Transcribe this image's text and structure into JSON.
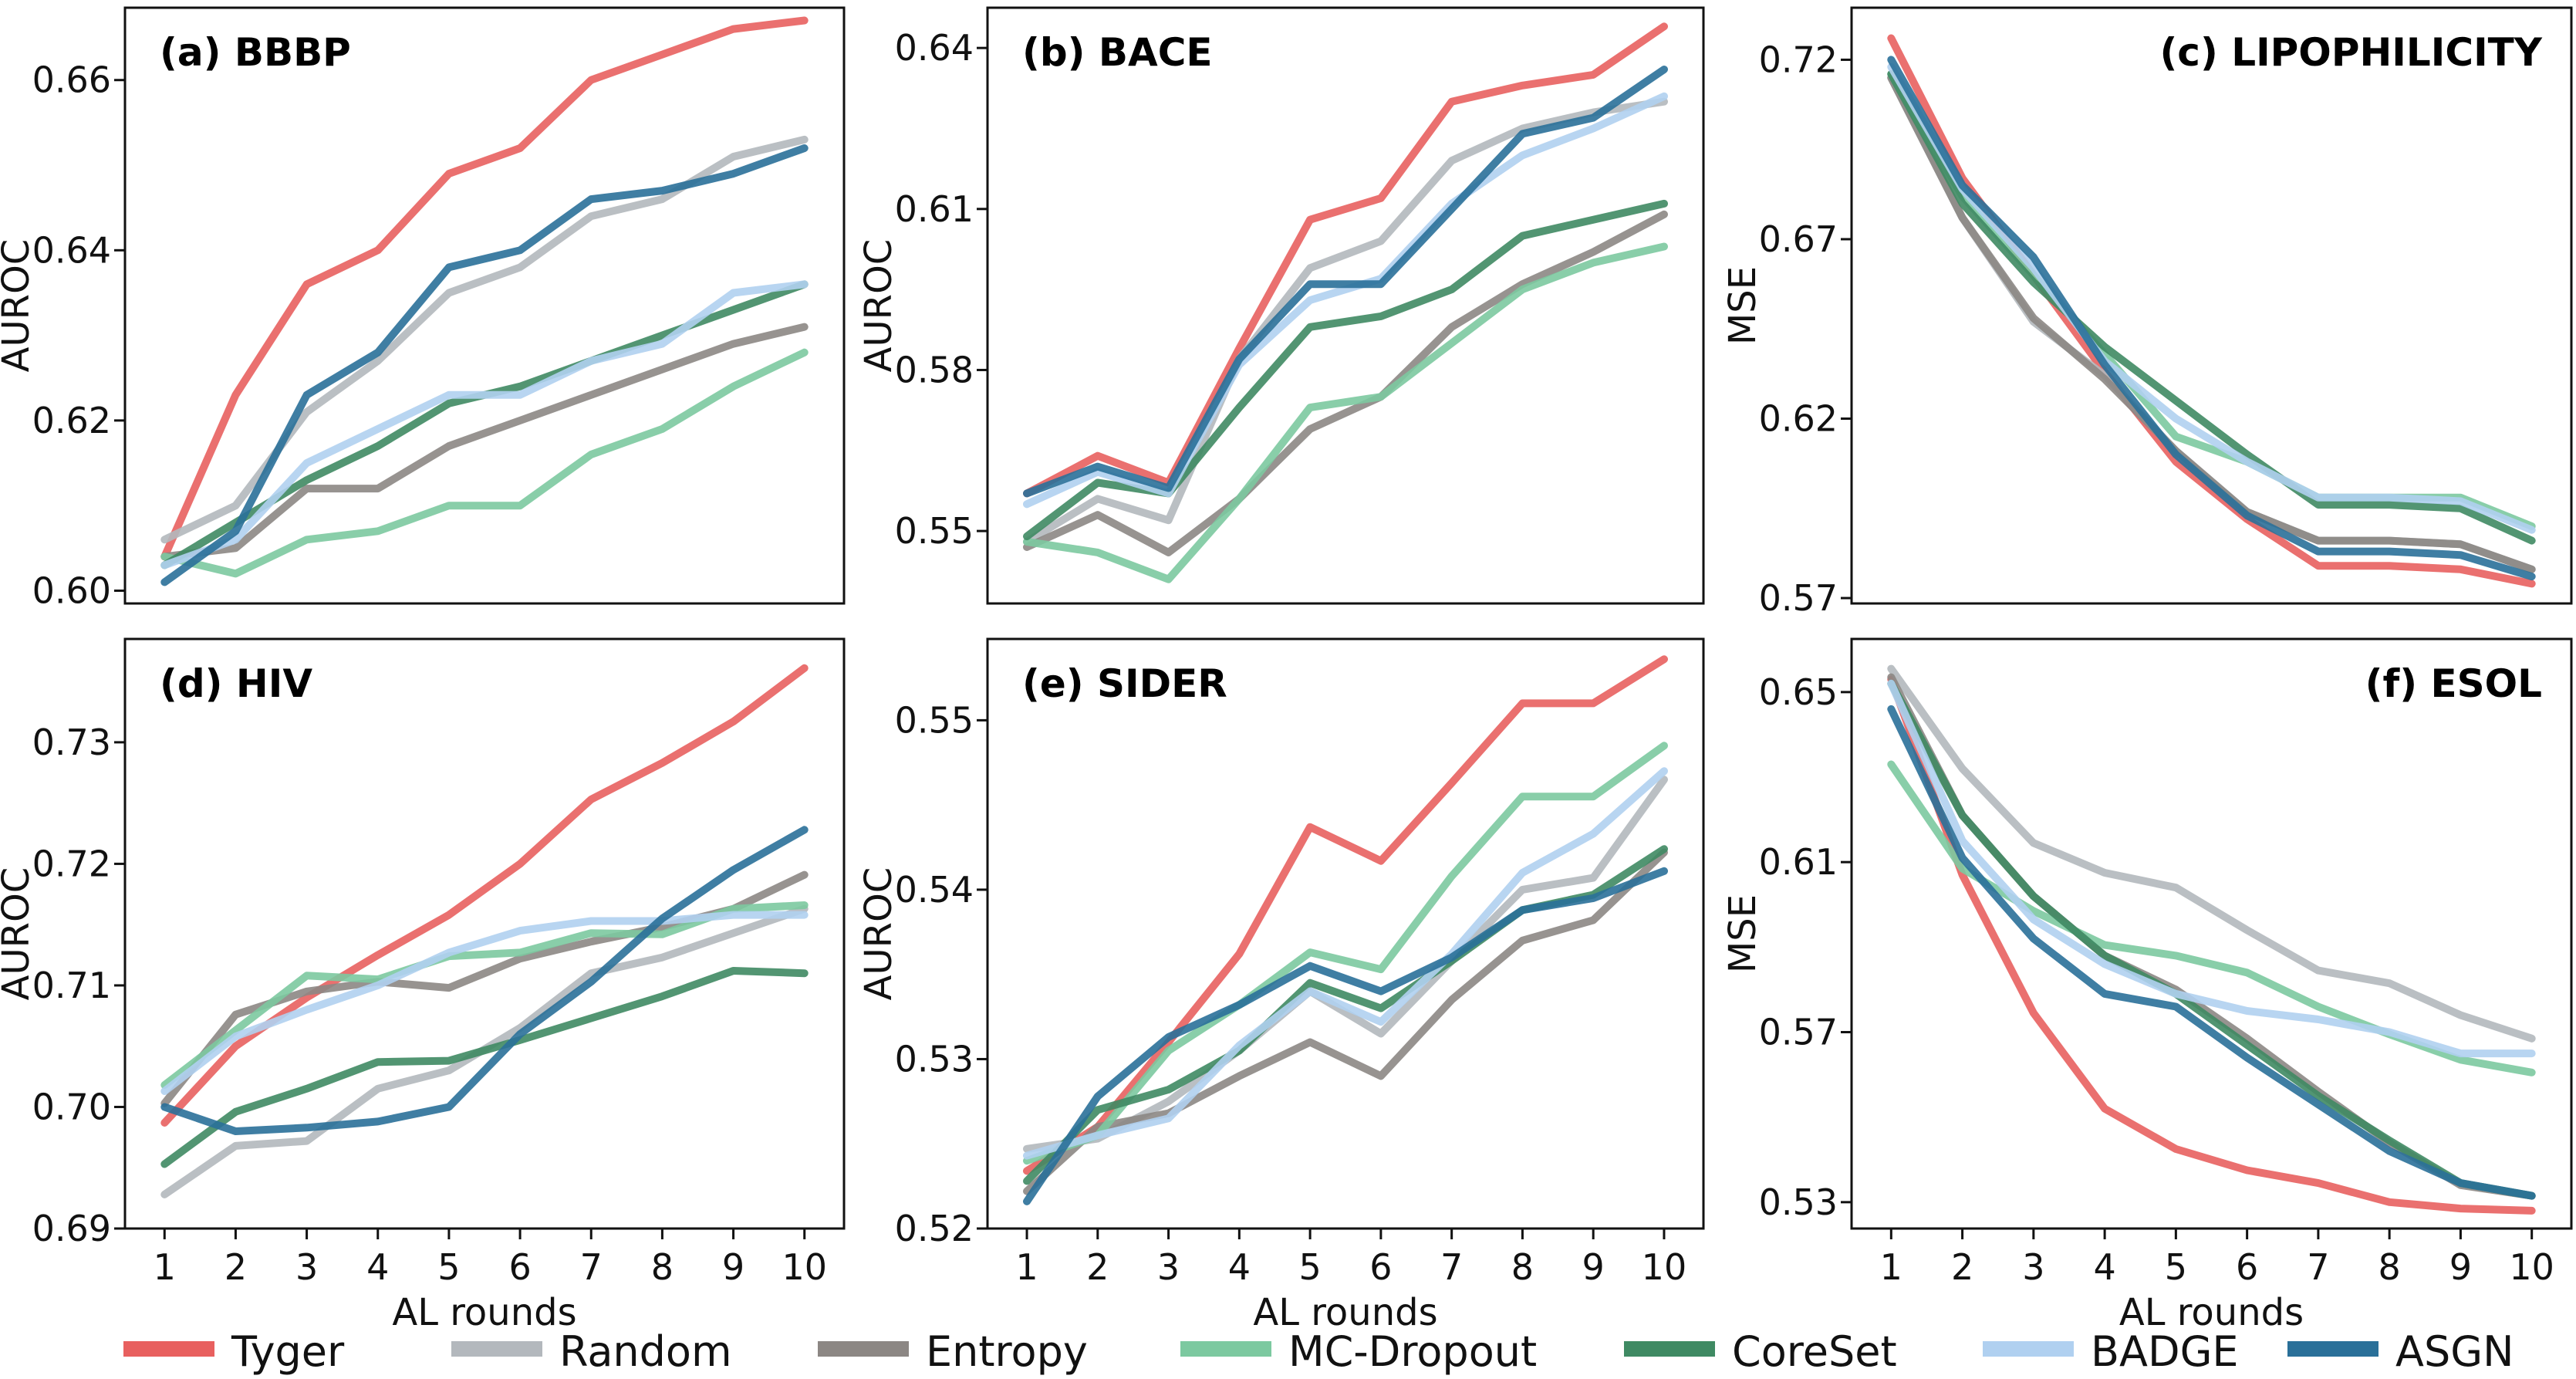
{
  "legend": [
    {
      "name": "Tyger",
      "color": "#e8605f"
    },
    {
      "name": "Random",
      "color": "#b3b8bd"
    },
    {
      "name": "Entropy",
      "color": "#8c8784"
    },
    {
      "name": "MC-Dropout",
      "color": "#7cc9a0"
    },
    {
      "name": "CoreSet",
      "color": "#3f8a63"
    },
    {
      "name": "BADGE",
      "color": "#b0d0f0"
    },
    {
      "name": "ASGN",
      "color": "#2a7099"
    }
  ],
  "chart_data": [
    {
      "type": "line",
      "title": "(a) BBBP",
      "title_position": "top-left",
      "xlabel": "",
      "ylabel": "AUROC",
      "x": [
        1,
        2,
        3,
        4,
        5,
        6,
        7,
        8,
        9,
        10
      ],
      "ylim": [
        0.5985,
        0.6685
      ],
      "yticks": [
        0.6,
        0.62,
        0.64,
        0.66
      ],
      "ytick_labels": [
        "0.60",
        "0.62",
        "0.64",
        "0.66"
      ],
      "show_xticks": false,
      "series": [
        {
          "name": "Tyger",
          "values": [
            0.604,
            0.623,
            0.636,
            0.64,
            0.649,
            0.652,
            0.66,
            0.663,
            0.666,
            0.667
          ]
        },
        {
          "name": "Random",
          "values": [
            0.606,
            0.61,
            0.621,
            0.627,
            0.635,
            0.638,
            0.644,
            0.646,
            0.651,
            0.653
          ]
        },
        {
          "name": "Entropy",
          "values": [
            0.604,
            0.605,
            0.612,
            0.612,
            0.617,
            0.62,
            0.623,
            0.626,
            0.629,
            0.631
          ]
        },
        {
          "name": "MC-Dropout",
          "values": [
            0.604,
            0.602,
            0.606,
            0.607,
            0.61,
            0.61,
            0.616,
            0.619,
            0.624,
            0.628
          ]
        },
        {
          "name": "CoreSet",
          "values": [
            0.603,
            0.608,
            0.613,
            0.617,
            0.622,
            0.624,
            0.627,
            0.63,
            0.633,
            0.636
          ]
        },
        {
          "name": "BADGE",
          "values": [
            0.603,
            0.606,
            0.615,
            0.619,
            0.623,
            0.623,
            0.627,
            0.629,
            0.635,
            0.636
          ]
        },
        {
          "name": "ASGN",
          "values": [
            0.601,
            0.607,
            0.623,
            0.628,
            0.638,
            0.64,
            0.646,
            0.647,
            0.649,
            0.652
          ]
        }
      ]
    },
    {
      "type": "line",
      "title": "(b) BACE",
      "title_position": "top-left",
      "xlabel": "",
      "ylabel": "AUROC",
      "x": [
        1,
        2,
        3,
        4,
        5,
        6,
        7,
        8,
        9,
        10
      ],
      "ylim": [
        0.5365,
        0.6475
      ],
      "yticks": [
        0.55,
        0.58,
        0.61,
        0.64
      ],
      "ytick_labels": [
        "0.55",
        "0.58",
        "0.61",
        "0.64"
      ],
      "show_xticks": false,
      "series": [
        {
          "name": "Tyger",
          "values": [
            0.557,
            0.564,
            0.559,
            0.584,
            0.608,
            0.612,
            0.63,
            0.633,
            0.635,
            0.644
          ]
        },
        {
          "name": "Random",
          "values": [
            0.548,
            0.556,
            0.552,
            0.582,
            0.599,
            0.604,
            0.619,
            0.625,
            0.628,
            0.63
          ]
        },
        {
          "name": "Entropy",
          "values": [
            0.547,
            0.553,
            0.546,
            0.556,
            0.569,
            0.575,
            0.588,
            0.596,
            0.602,
            0.609
          ]
        },
        {
          "name": "MC-Dropout",
          "values": [
            0.548,
            0.546,
            0.541,
            0.556,
            0.573,
            0.575,
            0.585,
            0.595,
            0.6,
            0.603
          ]
        },
        {
          "name": "CoreSet",
          "values": [
            0.549,
            0.559,
            0.557,
            0.573,
            0.588,
            0.59,
            0.595,
            0.605,
            0.608,
            0.611
          ]
        },
        {
          "name": "BADGE",
          "values": [
            0.555,
            0.561,
            0.557,
            0.581,
            0.593,
            0.597,
            0.611,
            0.62,
            0.625,
            0.631
          ]
        },
        {
          "name": "ASGN",
          "values": [
            0.557,
            0.562,
            0.558,
            0.582,
            0.596,
            0.596,
            0.61,
            0.624,
            0.627,
            0.636
          ]
        }
      ]
    },
    {
      "type": "line",
      "title": "(c) LIPOPHILICITY",
      "title_position": "top-right",
      "xlabel": "",
      "ylabel": "MSE",
      "x": [
        1,
        2,
        3,
        4,
        5,
        6,
        7,
        8,
        9,
        10
      ],
      "ylim": [
        0.5685,
        0.7345
      ],
      "yticks": [
        0.57,
        0.62,
        0.67,
        0.72
      ],
      "ytick_labels": [
        "0.57",
        "0.62",
        "0.67",
        "0.72"
      ],
      "show_xticks": false,
      "series": [
        {
          "name": "Tyger",
          "values": [
            0.726,
            0.687,
            0.66,
            0.633,
            0.608,
            0.592,
            0.579,
            0.579,
            0.578,
            0.574
          ]
        },
        {
          "name": "Random",
          "values": [
            0.715,
            0.676,
            0.647,
            0.632,
            0.611,
            0.594,
            0.586,
            0.586,
            0.585,
            0.578
          ]
        },
        {
          "name": "Entropy",
          "values": [
            0.715,
            0.676,
            0.648,
            0.631,
            0.611,
            0.594,
            0.586,
            0.586,
            0.585,
            0.578
          ]
        },
        {
          "name": "MC-Dropout",
          "values": [
            0.716,
            0.682,
            0.66,
            0.638,
            0.615,
            0.608,
            0.598,
            0.598,
            0.598,
            0.59
          ]
        },
        {
          "name": "CoreSet",
          "values": [
            0.716,
            0.68,
            0.658,
            0.64,
            0.625,
            0.61,
            0.596,
            0.596,
            0.595,
            0.586
          ]
        },
        {
          "name": "BADGE",
          "values": [
            0.718,
            0.684,
            0.662,
            0.636,
            0.62,
            0.608,
            0.598,
            0.598,
            0.597,
            0.589
          ]
        },
        {
          "name": "ASGN",
          "values": [
            0.72,
            0.685,
            0.665,
            0.635,
            0.61,
            0.593,
            0.583,
            0.583,
            0.582,
            0.576
          ]
        }
      ]
    },
    {
      "type": "line",
      "title": "(d) HIV",
      "title_position": "top-left",
      "xlabel": "AL rounds",
      "ylabel": "AUROC",
      "x": [
        1,
        2,
        3,
        4,
        5,
        6,
        7,
        8,
        9,
        10
      ],
      "ylim": [
        0.69,
        0.7385
      ],
      "yticks": [
        0.69,
        0.7,
        0.71,
        0.72,
        0.73
      ],
      "ytick_labels": [
        "0.69",
        "0.70",
        "0.71",
        "0.72",
        "0.73"
      ],
      "show_xticks": true,
      "series": [
        {
          "name": "Tyger",
          "values": [
            0.6987,
            0.705,
            0.709,
            0.7125,
            0.7158,
            0.72,
            0.7253,
            0.7283,
            0.7317,
            0.7361
          ]
        },
        {
          "name": "Random",
          "values": [
            0.6928,
            0.6968,
            0.6972,
            0.7015,
            0.703,
            0.7065,
            0.711,
            0.7123,
            0.7143,
            0.7163
          ]
        },
        {
          "name": "Entropy",
          "values": [
            0.7003,
            0.7076,
            0.7095,
            0.7103,
            0.7098,
            0.7122,
            0.7136,
            0.7148,
            0.7163,
            0.7191
          ]
        },
        {
          "name": "MC-Dropout",
          "values": [
            0.7018,
            0.7063,
            0.7108,
            0.7105,
            0.7124,
            0.7127,
            0.7143,
            0.7142,
            0.7163,
            0.7166
          ]
        },
        {
          "name": "CoreSet",
          "values": [
            0.6953,
            0.6996,
            0.7015,
            0.7037,
            0.7038,
            0.7055,
            0.7073,
            0.7091,
            0.7112,
            0.711
          ]
        },
        {
          "name": "BADGE",
          "values": [
            0.7013,
            0.7058,
            0.708,
            0.71,
            0.7127,
            0.7145,
            0.7153,
            0.7153,
            0.7158,
            0.7158
          ]
        },
        {
          "name": "ASGN",
          "values": [
            0.7,
            0.698,
            0.6983,
            0.6988,
            0.7,
            0.706,
            0.7103,
            0.7155,
            0.7195,
            0.7228
          ]
        }
      ]
    },
    {
      "type": "line",
      "title": "(e) SIDER",
      "title_position": "top-left",
      "xlabel": "AL rounds",
      "ylabel": "AUROC",
      "x": [
        1,
        2,
        3,
        4,
        5,
        6,
        7,
        8,
        9,
        10
      ],
      "ylim": [
        0.52,
        0.5548
      ],
      "yticks": [
        0.52,
        0.53,
        0.54,
        0.55
      ],
      "ytick_labels": [
        "0.52",
        "0.53",
        "0.54",
        "0.55"
      ],
      "show_xticks": true,
      "series": [
        {
          "name": "Tyger",
          "values": [
            0.5234,
            0.526,
            0.531,
            0.5362,
            0.5437,
            0.5417,
            0.5463,
            0.551,
            0.551,
            0.5536
          ]
        },
        {
          "name": "Random",
          "values": [
            0.5247,
            0.5253,
            0.5275,
            0.5305,
            0.534,
            0.5315,
            0.5358,
            0.54,
            0.5407,
            0.5465
          ]
        },
        {
          "name": "Entropy",
          "values": [
            0.5222,
            0.526,
            0.5268,
            0.529,
            0.531,
            0.529,
            0.5335,
            0.537,
            0.5382,
            0.5422
          ]
        },
        {
          "name": "MC-Dropout",
          "values": [
            0.524,
            0.5255,
            0.5305,
            0.5332,
            0.5363,
            0.5353,
            0.5408,
            0.5455,
            0.5455,
            0.5485
          ]
        },
        {
          "name": "CoreSet",
          "values": [
            0.5228,
            0.527,
            0.5282,
            0.5305,
            0.5345,
            0.533,
            0.5358,
            0.5388,
            0.5397,
            0.5424
          ]
        },
        {
          "name": "BADGE",
          "values": [
            0.5243,
            0.5255,
            0.5265,
            0.5308,
            0.534,
            0.5322,
            0.5362,
            0.541,
            0.5433,
            0.547
          ]
        },
        {
          "name": "ASGN",
          "values": [
            0.5216,
            0.5278,
            0.5313,
            0.5332,
            0.5355,
            0.534,
            0.536,
            0.5388,
            0.5395,
            0.5411
          ]
        }
      ]
    },
    {
      "type": "line",
      "title": "(f) ESOL",
      "title_position": "top-right",
      "xlabel": "AL rounds",
      "ylabel": "MSE",
      "x": [
        1,
        2,
        3,
        4,
        5,
        6,
        7,
        8,
        9,
        10
      ],
      "ylim": [
        0.5238,
        0.6625
      ],
      "yticks": [
        0.53,
        0.57,
        0.61,
        0.65
      ],
      "ytick_labels": [
        "0.53",
        "0.57",
        "0.61",
        "0.65"
      ],
      "show_xticks": true,
      "series": [
        {
          "name": "Tyger",
          "values": [
            0.653,
            0.607,
            0.5745,
            0.552,
            0.5425,
            0.5375,
            0.5345,
            0.53,
            0.5285,
            0.528
          ]
        },
        {
          "name": "Random",
          "values": [
            0.6555,
            0.632,
            0.6145,
            0.6075,
            0.604,
            0.594,
            0.5845,
            0.5815,
            0.574,
            0.5685
          ]
        },
        {
          "name": "Entropy",
          "values": [
            0.6535,
            0.621,
            0.602,
            0.588,
            0.58,
            0.5685,
            0.556,
            0.544,
            0.534,
            0.5315
          ]
        },
        {
          "name": "MC-Dropout",
          "values": [
            0.633,
            0.6085,
            0.5985,
            0.5905,
            0.588,
            0.584,
            0.576,
            0.5695,
            0.5635,
            0.5605
          ]
        },
        {
          "name": "CoreSet",
          "values": [
            0.652,
            0.621,
            0.602,
            0.588,
            0.579,
            0.567,
            0.555,
            0.5445,
            0.5345,
            0.5315
          ]
        },
        {
          "name": "BADGE",
          "values": [
            0.652,
            0.615,
            0.5965,
            0.586,
            0.579,
            0.575,
            0.573,
            0.57,
            0.565,
            0.565
          ]
        },
        {
          "name": "ASGN",
          "values": [
            0.646,
            0.611,
            0.592,
            0.579,
            0.576,
            0.564,
            0.553,
            0.542,
            0.5345,
            0.5315
          ]
        }
      ]
    }
  ]
}
